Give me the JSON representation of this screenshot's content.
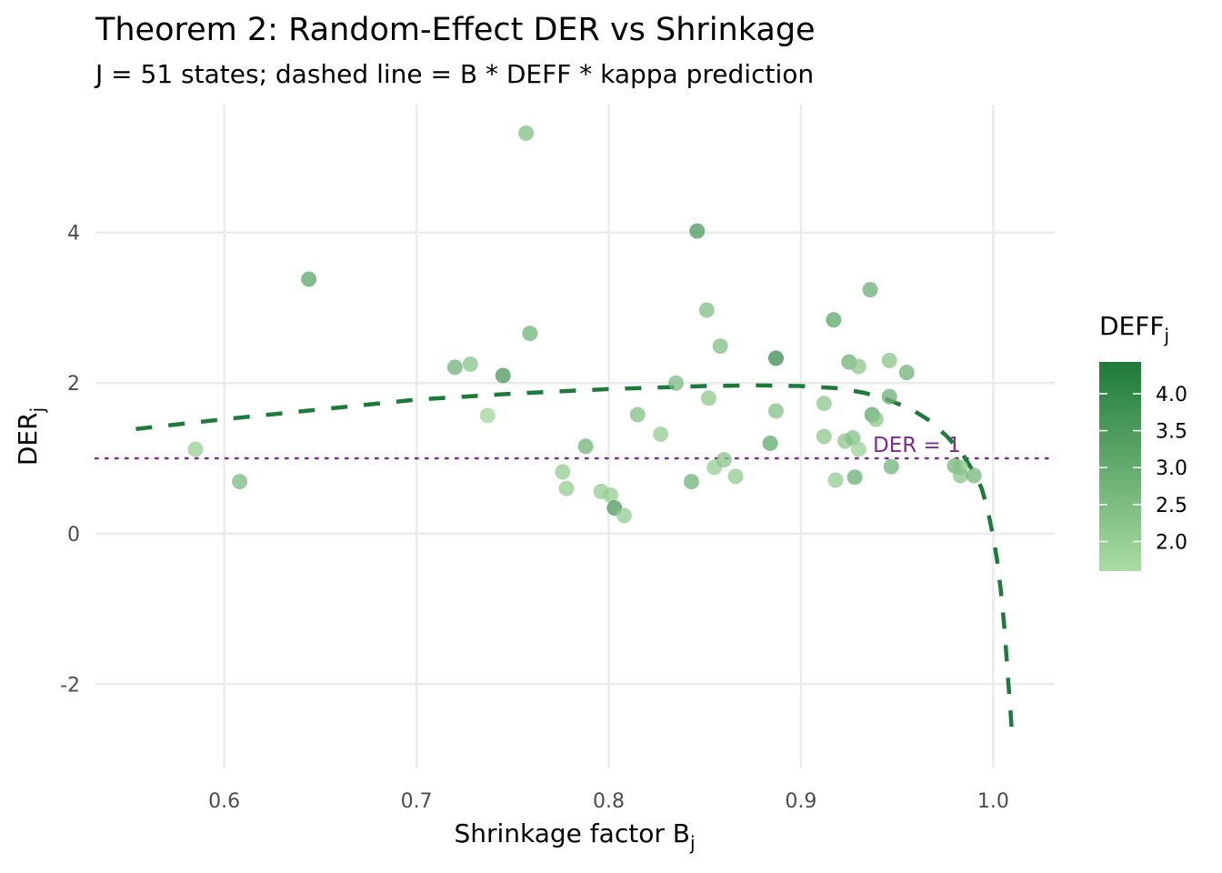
{
  "chart_data": {
    "type": "scatter",
    "title": "Theorem 2: Random-Effect DER vs Shrinkage",
    "subtitle": "J = 51 states; dashed line = B * DEFF * kappa prediction",
    "xlabel": "Shrinkage factor B",
    "xlabel_sub": "j",
    "ylabel": "DER",
    "ylabel_sub": "j",
    "xlim": [
      0.533,
      1.032
    ],
    "ylim": [
      -3.12,
      5.7
    ],
    "xticks": [
      0.6,
      0.7,
      0.8,
      0.9,
      1.0
    ],
    "xtick_labels": [
      "0.6",
      "0.7",
      "0.8",
      "0.9",
      "1.0"
    ],
    "yticks": [
      -2,
      0,
      2,
      4
    ],
    "ytick_labels": [
      "-2",
      "0",
      "2",
      "4"
    ],
    "grid": true,
    "legend": {
      "title": "DEFF",
      "title_sub": "j",
      "placement": "right",
      "range": [
        1.6,
        4.43
      ],
      "ticks": [
        2.0,
        2.5,
        3.0,
        3.5,
        4.0
      ],
      "tick_labels": [
        "2.0",
        "2.5",
        "3.0",
        "3.5",
        "4.0"
      ],
      "color_low": "#a9dca2",
      "color_high": "#1e7a3a"
    },
    "reference_line": {
      "y": 1,
      "label": "DER = 1",
      "color": "#7b2d8b"
    },
    "prediction_curve": {
      "color": "#1e7a3a",
      "x": [
        0.554,
        0.6,
        0.65,
        0.7,
        0.75,
        0.8,
        0.85,
        0.876,
        0.9,
        0.92,
        0.933,
        0.945,
        0.957,
        0.967,
        0.976,
        0.984,
        0.99,
        0.994,
        0.997,
        1.0,
        1.002,
        1.004,
        1.006,
        1.0075,
        1.009,
        1.01
      ],
      "y": [
        1.39,
        1.52,
        1.65,
        1.78,
        1.86,
        1.92,
        1.96,
        1.97,
        1.96,
        1.93,
        1.87,
        1.78,
        1.66,
        1.5,
        1.29,
        1.06,
        0.81,
        0.6,
        0.33,
        -0.04,
        -0.35,
        -0.76,
        -1.3,
        -1.85,
        -2.35,
        -2.76
      ]
    },
    "points": {
      "x": [
        0.585,
        0.608,
        0.644,
        0.72,
        0.728,
        0.745,
        0.737,
        0.757,
        0.759,
        0.776,
        0.778,
        0.788,
        0.796,
        0.801,
        0.803,
        0.808,
        0.815,
        0.827,
        0.835,
        0.846,
        0.843,
        0.851,
        0.852,
        0.855,
        0.86,
        0.866,
        0.858,
        0.884,
        0.887,
        0.887,
        0.917,
        0.912,
        0.912,
        0.918,
        0.928,
        0.923,
        0.927,
        0.93,
        0.925,
        0.93,
        0.936,
        0.937,
        0.939,
        0.946,
        0.946,
        0.947,
        0.955,
        0.98,
        0.983,
        0.983,
        0.99
      ],
      "y": [
        1.12,
        0.69,
        3.38,
        2.21,
        2.25,
        2.1,
        1.57,
        5.32,
        2.66,
        0.82,
        0.6,
        1.16,
        0.56,
        0.51,
        0.34,
        0.24,
        1.58,
        1.32,
        2.0,
        4.02,
        0.69,
        2.97,
        1.8,
        0.88,
        0.98,
        0.76,
        2.49,
        1.2,
        2.33,
        1.63,
        2.84,
        1.73,
        1.29,
        0.71,
        0.75,
        1.23,
        1.27,
        1.12,
        2.28,
        2.22,
        3.24,
        1.58,
        1.52,
        2.3,
        1.82,
        0.89,
        2.14,
        0.9,
        0.88,
        0.77,
        0.77
      ],
      "deff": [
        2.0,
        2.6,
        3.2,
        2.8,
        2.3,
        3.6,
        1.8,
        2.5,
        2.8,
        2.1,
        2.0,
        2.8,
        2.1,
        2.0,
        3.5,
        2.1,
        2.4,
        2.1,
        2.6,
        3.5,
        2.8,
        2.5,
        2.2,
        2.0,
        2.3,
        2.1,
        2.5,
        3.1,
        3.9,
        2.4,
        3.2,
        2.2,
        2.2,
        2.1,
        2.9,
        2.2,
        2.4,
        1.9,
        2.8,
        2.2,
        2.9,
        3.1,
        2.3,
        2.3,
        2.9,
        2.8,
        2.8,
        2.7,
        2.3,
        2.3,
        2.7
      ]
    }
  }
}
